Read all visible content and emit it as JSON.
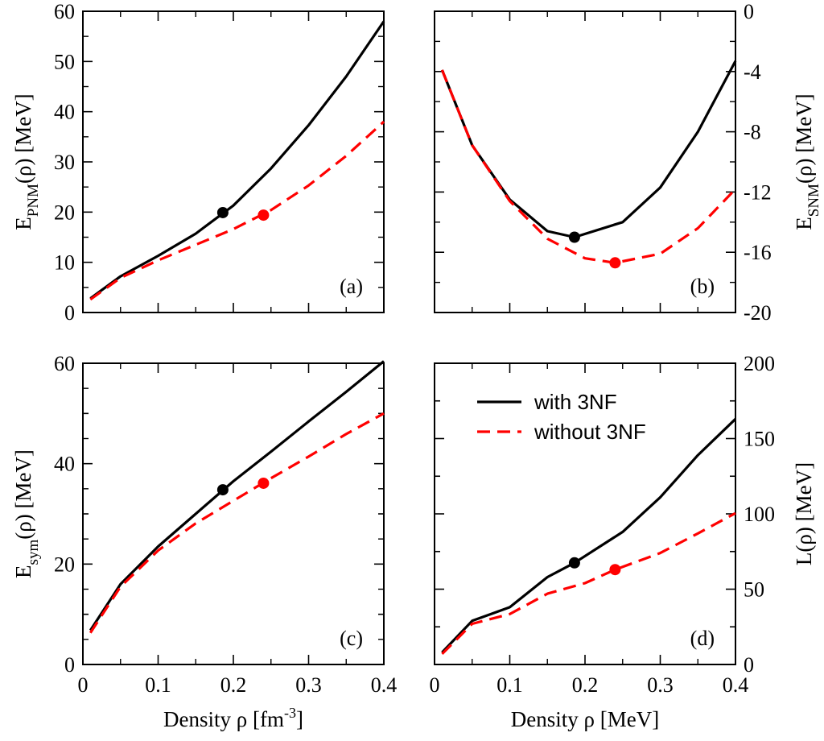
{
  "colors": {
    "with": "#000000",
    "without": "#ff0000"
  },
  "legend": {
    "with_label": "with 3NF",
    "without_label": "without 3NF"
  },
  "chart_data": [
    {
      "type": "line",
      "panel_label": "(a)",
      "ylabel_main": "E",
      "ylabel_sub": "PNM",
      "ylabel_rest": "(ρ) [MeV]",
      "xlim": [
        0,
        0.4
      ],
      "ylim": [
        0,
        60
      ],
      "xticks": [
        0,
        0.1,
        0.2,
        0.3,
        0.4
      ],
      "yticks": [
        0,
        10,
        20,
        30,
        40,
        50,
        60
      ],
      "ytick_labels": [
        "0",
        "10",
        "20",
        "30",
        "40",
        "50",
        "60"
      ],
      "y_side": "left",
      "series": [
        {
          "name": "with 3NF",
          "style": "solid",
          "color": "#000000",
          "x": [
            0.01,
            0.05,
            0.1,
            0.15,
            0.2,
            0.25,
            0.3,
            0.35,
            0.4
          ],
          "y": [
            2.8,
            7.2,
            11.3,
            15.7,
            21.3,
            28.7,
            37.3,
            47.0,
            58.0
          ]
        },
        {
          "name": "without 3NF",
          "style": "dashed",
          "color": "#ff0000",
          "x": [
            0.01,
            0.05,
            0.1,
            0.15,
            0.2,
            0.25,
            0.3,
            0.35,
            0.4
          ],
          "y": [
            2.6,
            6.9,
            10.4,
            13.5,
            16.6,
            20.4,
            25.3,
            31.2,
            38.0
          ]
        }
      ],
      "markers": [
        {
          "series": "with 3NF",
          "x": 0.186,
          "y": 19.9,
          "color": "#000000"
        },
        {
          "series": "without 3NF",
          "x": 0.24,
          "y": 19.4,
          "color": "#ff0000"
        }
      ]
    },
    {
      "type": "line",
      "panel_label": "(b)",
      "ylabel_main": "E",
      "ylabel_sub": "SNM",
      "ylabel_rest": "(ρ) [MeV]",
      "xlim": [
        0,
        0.4
      ],
      "ylim": [
        -20,
        0
      ],
      "xticks": [
        0,
        0.1,
        0.2,
        0.3,
        0.4
      ],
      "yticks": [
        -20,
        -16,
        -12,
        -8,
        -4,
        0
      ],
      "ytick_labels": [
        "-20",
        "-16",
        "-12",
        "-8",
        "-4",
        "0"
      ],
      "y_side": "right",
      "series": [
        {
          "name": "with 3NF",
          "style": "solid",
          "color": "#000000",
          "x": [
            0.01,
            0.05,
            0.1,
            0.15,
            0.186,
            0.25,
            0.3,
            0.35,
            0.4
          ],
          "y": [
            -3.9,
            -8.9,
            -12.5,
            -14.6,
            -15.0,
            -14.0,
            -11.7,
            -8.0,
            -3.3
          ]
        },
        {
          "name": "without 3NF",
          "style": "dashed",
          "color": "#ff0000",
          "x": [
            0.01,
            0.05,
            0.1,
            0.15,
            0.2,
            0.24,
            0.3,
            0.35,
            0.4
          ],
          "y": [
            -3.9,
            -8.9,
            -12.6,
            -15.1,
            -16.4,
            -16.7,
            -16.1,
            -14.4,
            -11.8
          ]
        }
      ],
      "markers": [
        {
          "series": "with 3NF",
          "x": 0.186,
          "y": -15.0,
          "color": "#000000"
        },
        {
          "series": "without 3NF",
          "x": 0.24,
          "y": -16.7,
          "color": "#ff0000"
        }
      ]
    },
    {
      "type": "line",
      "panel_label": "(c)",
      "ylabel_main": "E",
      "ylabel_sub": "sym",
      "ylabel_rest": "(ρ) [MeV]",
      "xlim": [
        0,
        0.4
      ],
      "ylim": [
        0,
        60
      ],
      "xticks": [
        0,
        0.1,
        0.2,
        0.3,
        0.4
      ],
      "xtick_labels": [
        "0",
        "0.1",
        "0.2",
        "0.3",
        "0.4"
      ],
      "yticks": [
        0,
        10,
        20,
        30,
        40,
        50,
        60
      ],
      "ytick_labels": [
        "0",
        "",
        "20",
        "",
        "40",
        "",
        "60"
      ],
      "y_side": "left",
      "xlabel_main": "Density ρ [fm",
      "xlabel_sup": "-3",
      "xlabel_end": "]",
      "series": [
        {
          "name": "with 3NF",
          "style": "solid",
          "color": "#000000",
          "x": [
            0.01,
            0.05,
            0.1,
            0.15,
            0.2,
            0.25,
            0.3,
            0.35,
            0.4
          ],
          "y": [
            6.8,
            16.0,
            23.5,
            30.0,
            36.5,
            42.4,
            48.4,
            54.3,
            60.4
          ]
        },
        {
          "name": "without 3NF",
          "style": "dashed",
          "color": "#ff0000",
          "x": [
            0.01,
            0.05,
            0.1,
            0.15,
            0.2,
            0.25,
            0.3,
            0.35,
            0.4
          ],
          "y": [
            6.3,
            15.5,
            22.7,
            28.1,
            32.6,
            37.1,
            41.4,
            45.9,
            50.0
          ]
        }
      ],
      "markers": [
        {
          "series": "with 3NF",
          "x": 0.186,
          "y": 34.8,
          "color": "#000000"
        },
        {
          "series": "without 3NF",
          "x": 0.24,
          "y": 36.1,
          "color": "#ff0000"
        }
      ]
    },
    {
      "type": "line",
      "panel_label": "(d)",
      "ylabel_main": "L(ρ) [MeV]",
      "ylabel_sub": "",
      "ylabel_rest": "",
      "xlim": [
        0,
        0.4
      ],
      "ylim": [
        0,
        200
      ],
      "xticks": [
        0,
        0.1,
        0.2,
        0.3,
        0.4
      ],
      "xtick_labels": [
        "0",
        "0.1",
        "0.2",
        "0.3",
        "0.4"
      ],
      "yticks": [
        0,
        25,
        50,
        75,
        100,
        125,
        150,
        175,
        200
      ],
      "ytick_labels": [
        "0",
        "",
        "50",
        "",
        "100",
        "",
        "150",
        "",
        "200"
      ],
      "y_side": "right",
      "xlabel_main": "Density ρ [MeV]",
      "xlabel_sup": "",
      "xlabel_end": "",
      "series": [
        {
          "name": "with 3NF",
          "style": "solid",
          "color": "#000000",
          "x": [
            0.01,
            0.05,
            0.1,
            0.15,
            0.186,
            0.25,
            0.3,
            0.35,
            0.4
          ],
          "y": [
            8.0,
            29.0,
            38.0,
            58.0,
            67.5,
            88.0,
            111.0,
            139.0,
            163.0
          ]
        },
        {
          "name": "without 3NF",
          "style": "dashed",
          "color": "#ff0000",
          "x": [
            0.01,
            0.05,
            0.1,
            0.15,
            0.2,
            0.24,
            0.3,
            0.35,
            0.4
          ],
          "y": [
            7.0,
            27.0,
            33.5,
            47.0,
            54.0,
            63.0,
            74.0,
            87.0,
            100.5
          ]
        }
      ],
      "markers": [
        {
          "series": "with 3NF",
          "x": 0.186,
          "y": 67.5,
          "color": "#000000"
        },
        {
          "series": "without 3NF",
          "x": 0.24,
          "y": 63.0,
          "color": "#ff0000"
        }
      ]
    }
  ]
}
